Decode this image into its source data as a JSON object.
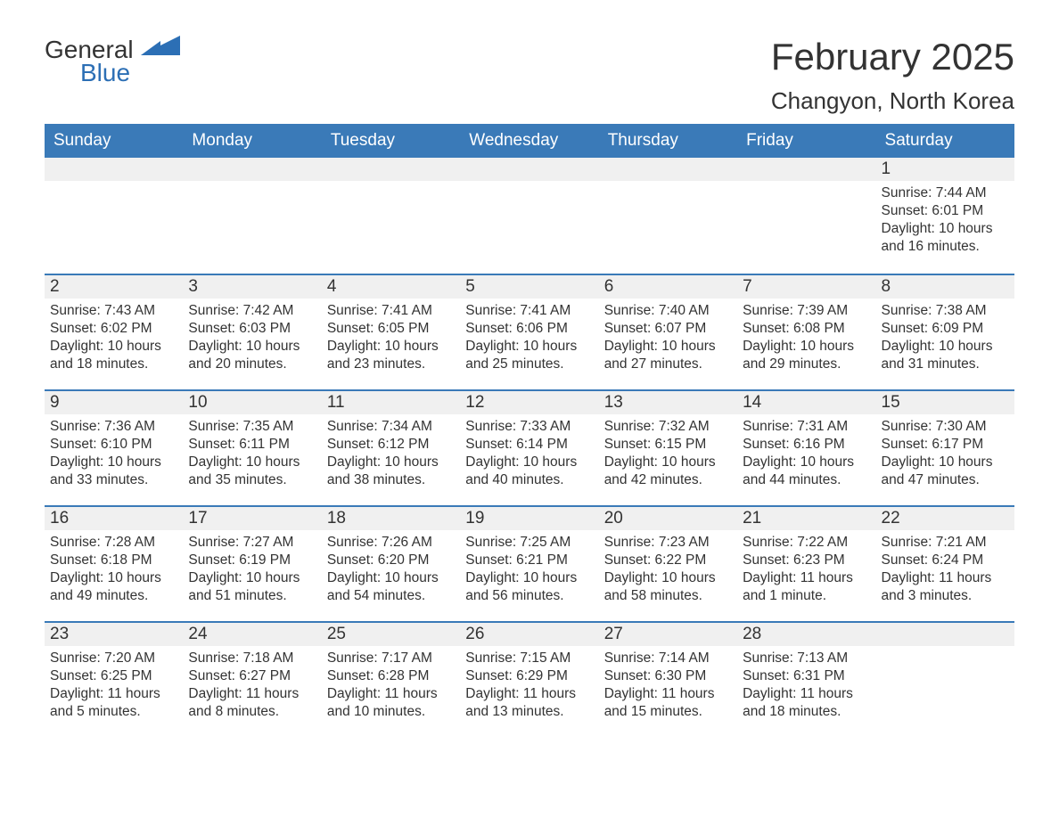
{
  "logo": {
    "text1": "General",
    "text2": "Blue",
    "icon_color": "#2c6fb5"
  },
  "title": "February 2025",
  "subtitle": "Changyon, North Korea",
  "colors": {
    "header_bg": "#3a7ab8",
    "header_text": "#ffffff",
    "bar_bg": "#f0f0f0",
    "bar_border": "#3a7ab8",
    "body_text": "#333333",
    "background": "#ffffff"
  },
  "weekdays": [
    "Sunday",
    "Monday",
    "Tuesday",
    "Wednesday",
    "Thursday",
    "Friday",
    "Saturday"
  ],
  "weeks": [
    [
      null,
      null,
      null,
      null,
      null,
      null,
      {
        "n": "1",
        "sunrise": "Sunrise: 7:44 AM",
        "sunset": "Sunset: 6:01 PM",
        "day": "Daylight: 10 hours and 16 minutes."
      }
    ],
    [
      {
        "n": "2",
        "sunrise": "Sunrise: 7:43 AM",
        "sunset": "Sunset: 6:02 PM",
        "day": "Daylight: 10 hours and 18 minutes."
      },
      {
        "n": "3",
        "sunrise": "Sunrise: 7:42 AM",
        "sunset": "Sunset: 6:03 PM",
        "day": "Daylight: 10 hours and 20 minutes."
      },
      {
        "n": "4",
        "sunrise": "Sunrise: 7:41 AM",
        "sunset": "Sunset: 6:05 PM",
        "day": "Daylight: 10 hours and 23 minutes."
      },
      {
        "n": "5",
        "sunrise": "Sunrise: 7:41 AM",
        "sunset": "Sunset: 6:06 PM",
        "day": "Daylight: 10 hours and 25 minutes."
      },
      {
        "n": "6",
        "sunrise": "Sunrise: 7:40 AM",
        "sunset": "Sunset: 6:07 PM",
        "day": "Daylight: 10 hours and 27 minutes."
      },
      {
        "n": "7",
        "sunrise": "Sunrise: 7:39 AM",
        "sunset": "Sunset: 6:08 PM",
        "day": "Daylight: 10 hours and 29 minutes."
      },
      {
        "n": "8",
        "sunrise": "Sunrise: 7:38 AM",
        "sunset": "Sunset: 6:09 PM",
        "day": "Daylight: 10 hours and 31 minutes."
      }
    ],
    [
      {
        "n": "9",
        "sunrise": "Sunrise: 7:36 AM",
        "sunset": "Sunset: 6:10 PM",
        "day": "Daylight: 10 hours and 33 minutes."
      },
      {
        "n": "10",
        "sunrise": "Sunrise: 7:35 AM",
        "sunset": "Sunset: 6:11 PM",
        "day": "Daylight: 10 hours and 35 minutes."
      },
      {
        "n": "11",
        "sunrise": "Sunrise: 7:34 AM",
        "sunset": "Sunset: 6:12 PM",
        "day": "Daylight: 10 hours and 38 minutes."
      },
      {
        "n": "12",
        "sunrise": "Sunrise: 7:33 AM",
        "sunset": "Sunset: 6:14 PM",
        "day": "Daylight: 10 hours and 40 minutes."
      },
      {
        "n": "13",
        "sunrise": "Sunrise: 7:32 AM",
        "sunset": "Sunset: 6:15 PM",
        "day": "Daylight: 10 hours and 42 minutes."
      },
      {
        "n": "14",
        "sunrise": "Sunrise: 7:31 AM",
        "sunset": "Sunset: 6:16 PM",
        "day": "Daylight: 10 hours and 44 minutes."
      },
      {
        "n": "15",
        "sunrise": "Sunrise: 7:30 AM",
        "sunset": "Sunset: 6:17 PM",
        "day": "Daylight: 10 hours and 47 minutes."
      }
    ],
    [
      {
        "n": "16",
        "sunrise": "Sunrise: 7:28 AM",
        "sunset": "Sunset: 6:18 PM",
        "day": "Daylight: 10 hours and 49 minutes."
      },
      {
        "n": "17",
        "sunrise": "Sunrise: 7:27 AM",
        "sunset": "Sunset: 6:19 PM",
        "day": "Daylight: 10 hours and 51 minutes."
      },
      {
        "n": "18",
        "sunrise": "Sunrise: 7:26 AM",
        "sunset": "Sunset: 6:20 PM",
        "day": "Daylight: 10 hours and 54 minutes."
      },
      {
        "n": "19",
        "sunrise": "Sunrise: 7:25 AM",
        "sunset": "Sunset: 6:21 PM",
        "day": "Daylight: 10 hours and 56 minutes."
      },
      {
        "n": "20",
        "sunrise": "Sunrise: 7:23 AM",
        "sunset": "Sunset: 6:22 PM",
        "day": "Daylight: 10 hours and 58 minutes."
      },
      {
        "n": "21",
        "sunrise": "Sunrise: 7:22 AM",
        "sunset": "Sunset: 6:23 PM",
        "day": "Daylight: 11 hours and 1 minute."
      },
      {
        "n": "22",
        "sunrise": "Sunrise: 7:21 AM",
        "sunset": "Sunset: 6:24 PM",
        "day": "Daylight: 11 hours and 3 minutes."
      }
    ],
    [
      {
        "n": "23",
        "sunrise": "Sunrise: 7:20 AM",
        "sunset": "Sunset: 6:25 PM",
        "day": "Daylight: 11 hours and 5 minutes."
      },
      {
        "n": "24",
        "sunrise": "Sunrise: 7:18 AM",
        "sunset": "Sunset: 6:27 PM",
        "day": "Daylight: 11 hours and 8 minutes."
      },
      {
        "n": "25",
        "sunrise": "Sunrise: 7:17 AM",
        "sunset": "Sunset: 6:28 PM",
        "day": "Daylight: 11 hours and 10 minutes."
      },
      {
        "n": "26",
        "sunrise": "Sunrise: 7:15 AM",
        "sunset": "Sunset: 6:29 PM",
        "day": "Daylight: 11 hours and 13 minutes."
      },
      {
        "n": "27",
        "sunrise": "Sunrise: 7:14 AM",
        "sunset": "Sunset: 6:30 PM",
        "day": "Daylight: 11 hours and 15 minutes."
      },
      {
        "n": "28",
        "sunrise": "Sunrise: 7:13 AM",
        "sunset": "Sunset: 6:31 PM",
        "day": "Daylight: 11 hours and 18 minutes."
      },
      null
    ]
  ]
}
